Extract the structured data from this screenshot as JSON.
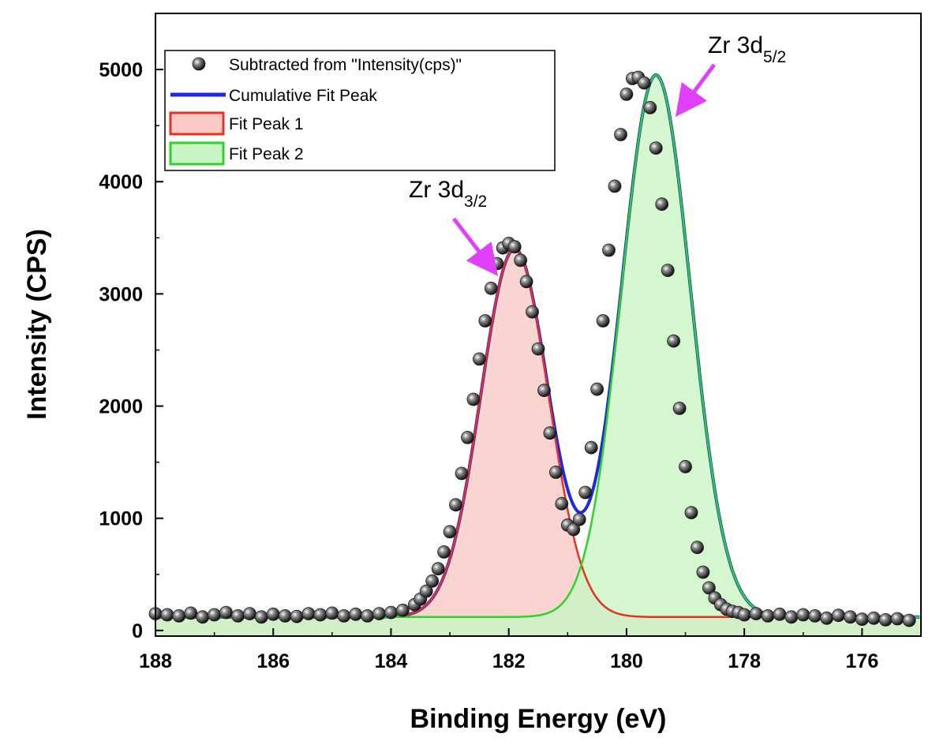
{
  "chart_data": {
    "type": "scatter",
    "xlabel": "Binding Energy (eV)",
    "ylabel": "Intensity (CPS)",
    "xlim": [
      188,
      175
    ],
    "ylim": [
      -50,
      5500
    ],
    "x_reversed": true,
    "x_ticks": [
      "188",
      "186",
      "184",
      "182",
      "180",
      "178",
      "176"
    ],
    "y_ticks": [
      "0",
      "1000",
      "2000",
      "3000",
      "4000",
      "5000"
    ],
    "legend": {
      "placement": "top-left",
      "entries": [
        "Subtracted from \"Intensity(cps)\"",
        "Cumulative Fit Peak",
        "Fit Peak 1",
        "Fit Peak 2"
      ]
    },
    "annotations": [
      {
        "base": "Zr 3d",
        "sub": "3/2",
        "x": 181.7,
        "y": 3270
      },
      {
        "base": "Zr 3d",
        "sub": "5/2",
        "x": 179.35,
        "y": 4750
      }
    ],
    "baseline": 120,
    "fit_peaks": [
      {
        "name": "Fit Peak 1",
        "center": 181.9,
        "height": 3280,
        "fwhm": 1.35,
        "color": "#e63222",
        "fill": "#f9c9c6"
      },
      {
        "name": "Fit Peak 2",
        "center": 179.5,
        "height": 4830,
        "fwhm": 1.38,
        "color": "#2fd12a",
        "fill": "#c9f5c4"
      }
    ],
    "series": [
      {
        "name": "Subtracted from \"Intensity(cps)\"",
        "x": [
          188.0,
          187.8,
          187.6,
          187.4,
          187.2,
          187.0,
          186.8,
          186.6,
          186.4,
          186.2,
          186.0,
          185.8,
          185.6,
          185.4,
          185.2,
          185.0,
          184.8,
          184.6,
          184.4,
          184.2,
          184.0,
          183.8,
          183.6,
          183.5,
          183.4,
          183.3,
          183.2,
          183.1,
          183.0,
          182.9,
          182.8,
          182.7,
          182.6,
          182.5,
          182.4,
          182.3,
          182.2,
          182.1,
          182.0,
          181.9,
          181.8,
          181.7,
          181.6,
          181.5,
          181.4,
          181.3,
          181.2,
          181.1,
          181.0,
          180.9,
          180.8,
          180.7,
          180.6,
          180.5,
          180.4,
          180.3,
          180.2,
          180.1,
          180.0,
          179.9,
          179.8,
          179.7,
          179.6,
          179.5,
          179.4,
          179.3,
          179.2,
          179.1,
          179.0,
          178.9,
          178.8,
          178.7,
          178.6,
          178.5,
          178.4,
          178.3,
          178.2,
          178.1,
          178.0,
          177.8,
          177.6,
          177.4,
          177.2,
          177.0,
          176.8,
          176.6,
          176.4,
          176.2,
          176.0,
          175.8,
          175.6,
          175.4,
          175.2
        ],
        "y": [
          150,
          140,
          130,
          155,
          120,
          140,
          160,
          130,
          150,
          120,
          145,
          130,
          125,
          150,
          140,
          155,
          130,
          145,
          130,
          150,
          160,
          180,
          230,
          280,
          350,
          440,
          550,
          700,
          880,
          1120,
          1400,
          1720,
          2060,
          2420,
          2760,
          3050,
          3270,
          3410,
          3450,
          3420,
          3300,
          3110,
          2840,
          2510,
          2140,
          1760,
          1410,
          1130,
          940,
          900,
          990,
          1230,
          1630,
          2150,
          2760,
          3390,
          3960,
          4420,
          4780,
          4920,
          4930,
          4880,
          4660,
          4300,
          3800,
          3210,
          2580,
          1980,
          1460,
          1050,
          740,
          520,
          380,
          290,
          230,
          190,
          170,
          160,
          140,
          150,
          130,
          145,
          120,
          140,
          130,
          110,
          135,
          120,
          100,
          110,
          95,
          105,
          90
        ]
      }
    ]
  }
}
